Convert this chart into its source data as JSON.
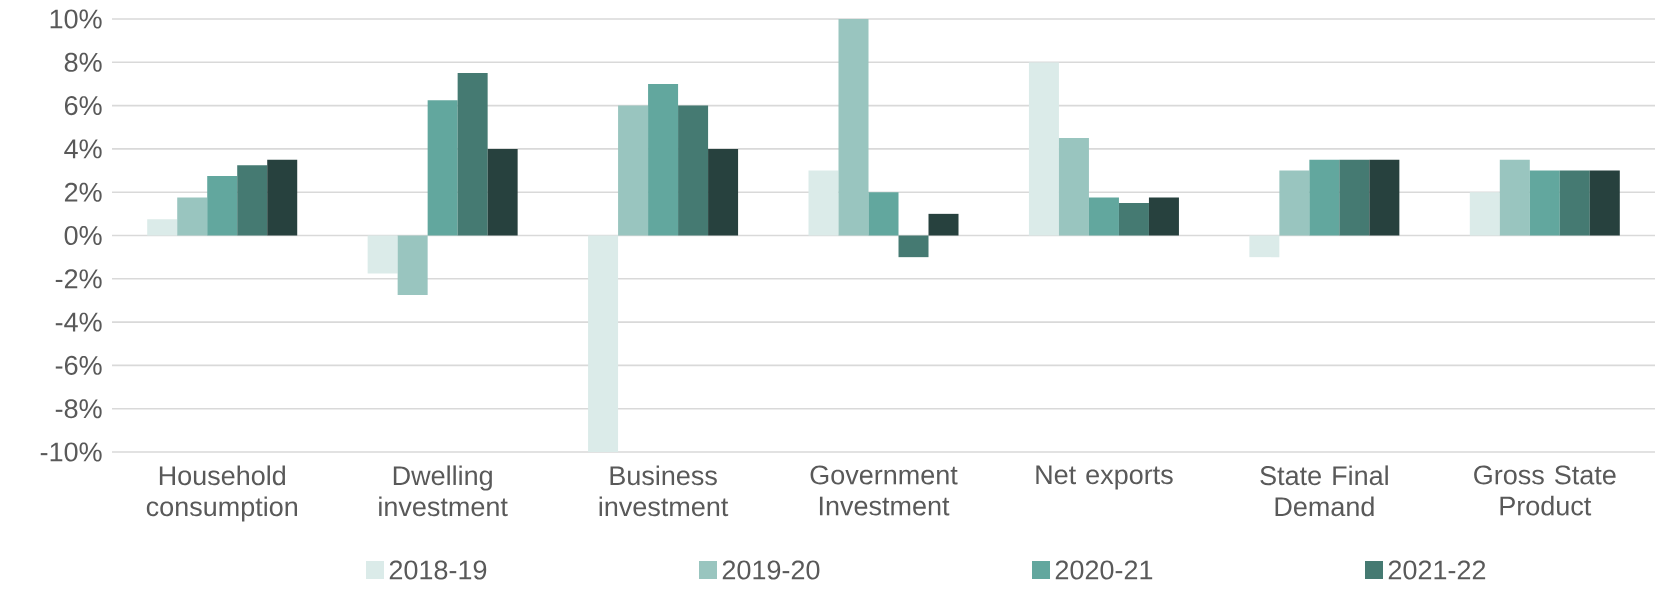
{
  "chart_data": {
    "type": "bar",
    "categories": [
      "Household consumption",
      "Dwelling investment",
      "Business investment",
      "Government Investment",
      "Net exports",
      "State Final Demand",
      "Gross State Product"
    ],
    "series": [
      {
        "name": "2018-19",
        "color": "#dbebe9",
        "values": [
          0.75,
          -1.75,
          -10,
          3,
          8,
          -1,
          2
        ]
      },
      {
        "name": "2019-20",
        "color": "#99c5bf",
        "values": [
          1.75,
          -2.75,
          6,
          10,
          4.5,
          3,
          3.5
        ]
      },
      {
        "name": "2020-21",
        "color": "#62a79e",
        "values": [
          2.75,
          6.25,
          7,
          2,
          1.75,
          3.5,
          3
        ]
      },
      {
        "name": "2021-22",
        "color": "#457a72",
        "values": [
          3.25,
          7.5,
          6,
          -1,
          1.5,
          3.5,
          3
        ]
      },
      {
        "color": "#27413e",
        "values": [
          3.5,
          4,
          4,
          1,
          1.75,
          3.5,
          3
        ]
      }
    ],
    "ylim": [
      -10,
      10
    ],
    "yticks": [
      {
        "value": -10,
        "label": "-10%"
      },
      {
        "value": -8,
        "label": "-8%"
      },
      {
        "value": -6,
        "label": "-6%"
      },
      {
        "value": -4,
        "label": "-4%"
      },
      {
        "value": -2,
        "label": "-2%"
      },
      {
        "value": 0,
        "label": "0%"
      },
      {
        "value": 2,
        "label": "2%"
      },
      {
        "value": 4,
        "label": "4%"
      },
      {
        "value": 6,
        "label": "6%"
      },
      {
        "value": 8,
        "label": "8%"
      },
      {
        "value": 10,
        "label": "10%"
      }
    ],
    "grid": "y",
    "legend": "bottom"
  }
}
